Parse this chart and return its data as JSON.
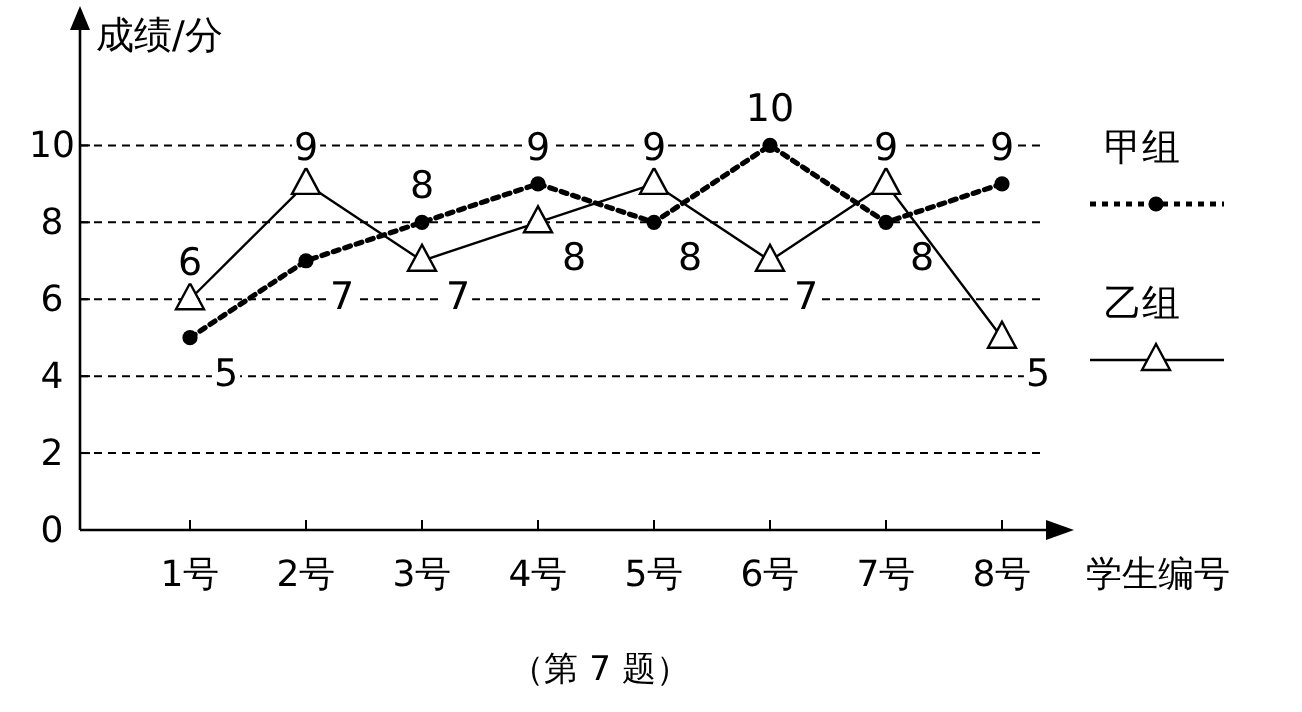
{
  "chart_data": {
    "type": "line",
    "ylabel": "成绩/分",
    "xlabel": "学生编号",
    "categories": [
      "1号",
      "2号",
      "3号",
      "4号",
      "5号",
      "6号",
      "7号",
      "8号"
    ],
    "series": [
      {
        "name": "甲组",
        "color": "#000000",
        "values": [
          5,
          7,
          8,
          9,
          8,
          10,
          8,
          9
        ],
        "marker": "circle",
        "line_style": "dotted"
      },
      {
        "name": "乙组",
        "color": "#000000",
        "values": [
          6,
          9,
          7,
          8,
          9,
          7,
          9,
          5
        ],
        "marker": "triangle",
        "line_style": "solid"
      }
    ],
    "ylim": [
      0,
      13
    ],
    "yticks": [
      0,
      2,
      4,
      6,
      8,
      10
    ],
    "grid": "y",
    "legend": "right",
    "data_labels": true,
    "annotations": [
      "（第 7 题）"
    ]
  }
}
